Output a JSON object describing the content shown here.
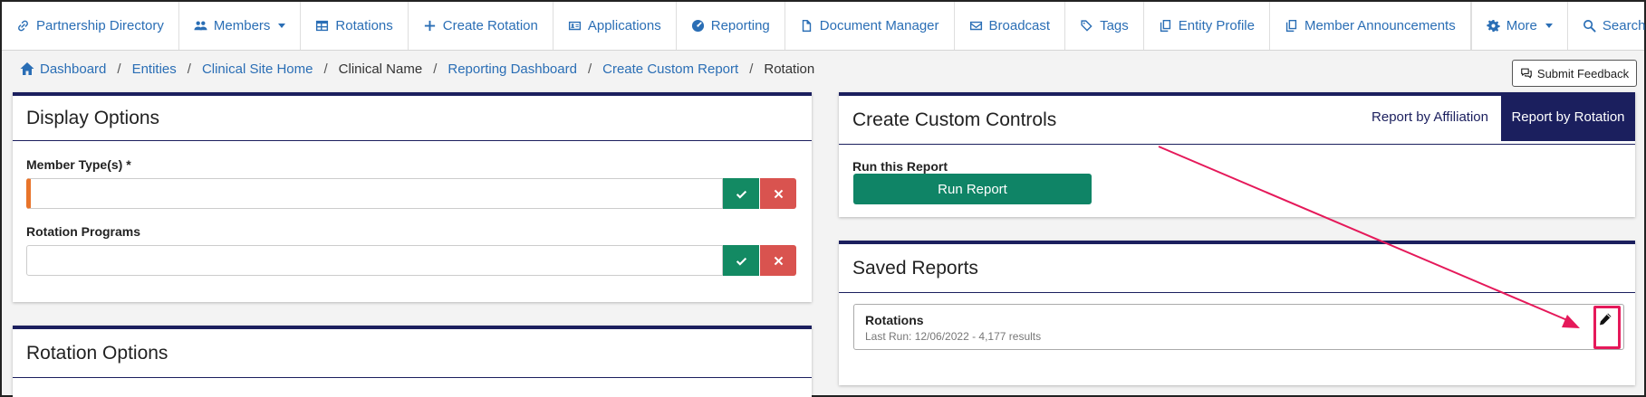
{
  "nav": {
    "items": [
      {
        "label": "Partnership Directory",
        "icon": "link-icon"
      },
      {
        "label": "Members",
        "icon": "users-icon",
        "dropdown": true
      },
      {
        "label": "Rotations",
        "icon": "table-icon"
      },
      {
        "label": "Create Rotation",
        "icon": "plus-icon"
      },
      {
        "label": "Applications",
        "icon": "id-card-icon"
      },
      {
        "label": "Reporting",
        "icon": "gauge-icon"
      },
      {
        "label": "Document Manager",
        "icon": "file-icon"
      },
      {
        "label": "Broadcast",
        "icon": "envelope-icon"
      },
      {
        "label": "Tags",
        "icon": "tag-icon"
      },
      {
        "label": "Entity Profile",
        "icon": "copy-icon"
      },
      {
        "label": "Member Announcements",
        "icon": "copy-icon"
      }
    ],
    "more_label": "More",
    "search_label": "Search"
  },
  "breadcrumb": [
    {
      "label": "Dashboard",
      "link": true
    },
    {
      "label": "Entities",
      "link": true
    },
    {
      "label": "Clinical Site Home",
      "link": true
    },
    {
      "label": "Clinical Name",
      "link": false
    },
    {
      "label": "Reporting Dashboard",
      "link": true
    },
    {
      "label": "Create Custom Report",
      "link": true
    },
    {
      "label": "Rotation",
      "link": false
    }
  ],
  "feedback_label": "Submit Feedback",
  "display_options": {
    "title": "Display Options",
    "member_types_label": "Member Type(s) *",
    "rotation_programs_label": "Rotation Programs"
  },
  "rotation_options": {
    "title": "Rotation Options"
  },
  "custom_controls": {
    "title": "Create Custom Controls",
    "tab_affiliation": "Report by Affiliation",
    "tab_rotation": "Report by Rotation",
    "run_label": "Run this Report",
    "run_button": "Run Report"
  },
  "saved_reports": {
    "title": "Saved Reports",
    "items": [
      {
        "name": "Rotations",
        "meta": "Last Run: 12/06/2022 - 4,177 results"
      }
    ]
  },
  "colors": {
    "link": "#2a6eb5",
    "navy": "#1b1f5e",
    "green": "#0f8466",
    "red": "#d9534f",
    "orange": "#e8742a",
    "annotation": "#e5195a"
  }
}
